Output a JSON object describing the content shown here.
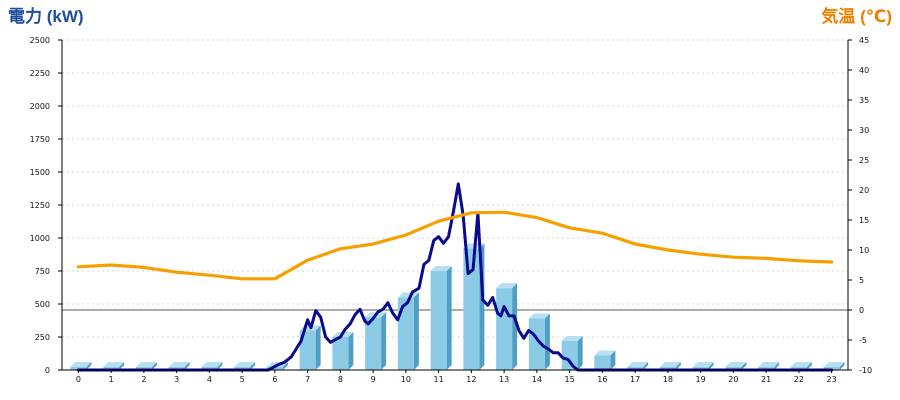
{
  "chart_data": {
    "type": "bar+line",
    "axes": {
      "left": {
        "label": "電力 (kW)",
        "min": 0,
        "max": 2500,
        "ticks": [
          0,
          250,
          500,
          750,
          1000,
          1250,
          1500,
          1750,
          2000,
          2250,
          2500
        ],
        "color": "#1f4e9c"
      },
      "right": {
        "label": "気温 (℃)",
        "min": -10,
        "max": 45,
        "ticks": [
          -10,
          -5,
          0,
          5,
          10,
          15,
          20,
          25,
          30,
          35,
          40,
          45
        ],
        "color": "#ee7f00"
      },
      "x": {
        "categories": [
          "0",
          "1",
          "2",
          "3",
          "4",
          "5",
          "6",
          "7",
          "8",
          "9",
          "10",
          "11",
          "12",
          "13",
          "14",
          "15",
          "16",
          "17",
          "18",
          "19",
          "20",
          "21",
          "22",
          "23"
        ]
      }
    },
    "series": [
      {
        "kind": "bar-3d",
        "axis": "left",
        "color": "#8ccbe6",
        "values": [
          0,
          0,
          0,
          0,
          0,
          0,
          0,
          300,
          250,
          400,
          550,
          750,
          920,
          620,
          390,
          220,
          110,
          0,
          0,
          0,
          0,
          0,
          0,
          0
        ]
      },
      {
        "kind": "line",
        "axis": "left",
        "color": "#0a0a8c",
        "x": [
          0,
          1,
          2,
          3,
          4,
          5,
          5.8,
          6.1,
          6.3,
          6.5,
          6.8,
          7.0,
          7.1,
          7.25,
          7.4,
          7.55,
          7.7,
          7.85,
          8.0,
          8.15,
          8.3,
          8.45,
          8.6,
          8.75,
          8.85,
          9.0,
          9.15,
          9.3,
          9.45,
          9.6,
          9.75,
          9.9,
          10.05,
          10.2,
          10.4,
          10.55,
          10.7,
          10.85,
          11.0,
          11.15,
          11.3,
          11.45,
          11.6,
          11.75,
          11.9,
          12.05,
          12.2,
          12.35,
          12.5,
          12.65,
          12.8,
          12.9,
          13.0,
          13.15,
          13.3,
          13.45,
          13.6,
          13.75,
          13.9,
          14.05,
          14.2,
          14.35,
          14.5,
          14.65,
          14.8,
          14.95,
          15.1,
          15.25,
          15.4,
          15.55,
          15.7,
          15.85,
          16.0,
          16.15,
          16.3,
          16.45,
          16.6,
          17,
          18,
          19,
          20,
          21,
          22,
          23
        ],
        "values": [
          0,
          0,
          0,
          0,
          0,
          0,
          0,
          40,
          60,
          100,
          220,
          380,
          320,
          450,
          400,
          250,
          210,
          230,
          250,
          310,
          350,
          420,
          460,
          370,
          350,
          390,
          440,
          460,
          510,
          430,
          380,
          480,
          510,
          590,
          620,
          800,
          830,
          980,
          1010,
          960,
          1010,
          1200,
          1410,
          1170,
          730,
          760,
          1190,
          530,
          490,
          550,
          430,
          410,
          480,
          410,
          410,
          300,
          240,
          300,
          270,
          220,
          180,
          160,
          130,
          130,
          90,
          80,
          30,
          0,
          0,
          0,
          0,
          0,
          0,
          0,
          0,
          0,
          0,
          0,
          0,
          0,
          0,
          0,
          0,
          0
        ]
      },
      {
        "kind": "line",
        "axis": "right",
        "color": "#f5a000",
        "values": [
          7.2,
          7.5,
          7.1,
          6.3,
          5.8,
          5.2,
          5.2,
          8.3,
          10.2,
          11.0,
          12.5,
          14.8,
          16.2,
          16.3,
          15.4,
          13.7,
          12.8,
          11.0,
          10.0,
          9.3,
          8.8,
          8.6,
          8.2,
          8.0
        ]
      }
    ]
  }
}
